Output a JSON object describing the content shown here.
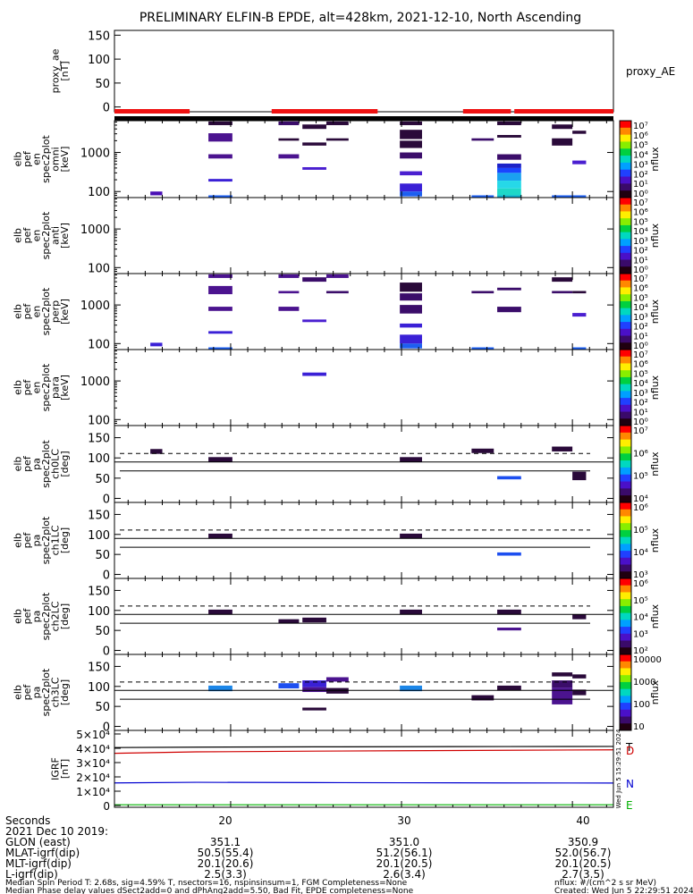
{
  "header": {
    "title": "PRELIMINARY ELFIN-B EPDE, alt=428km, 2021-12-10, North Ascending"
  },
  "chart_data": [
    {
      "id": "proxy_ae",
      "type": "line",
      "ylabel": "proxy_ae\n[nT]",
      "right_label": "proxy_AE",
      "ylim": [
        -10,
        160
      ],
      "yticks": [
        0,
        50,
        100,
        150
      ],
      "xlim": [
        13.2,
        42.4
      ],
      "series": []
    },
    {
      "id": "status_bar",
      "type": "bar",
      "red_segments": [
        [
          13.2,
          17.6
        ],
        [
          22.4,
          28.6
        ],
        [
          33.6,
          36.4
        ],
        [
          36.6,
          42.4
        ]
      ]
    },
    {
      "id": "en_omni",
      "type": "heatmap",
      "ylabel": "elb\npef\nen\nspec2plot\nomni\n[keV]",
      "yscale": "log",
      "ylim": [
        70,
        6500
      ],
      "yticks": [
        100,
        1000
      ],
      "xlim": [
        13.2,
        42.4
      ],
      "colorbar": {
        "label": "nflux",
        "ticks": [
          "10⁷",
          "10⁶",
          "10⁵",
          "10⁴",
          "10³",
          "10²",
          "10¹",
          "10⁰"
        ]
      },
      "cells": [
        [
          15.3,
          16.0,
          80,
          100,
          "#4a0fb5"
        ],
        [
          18.7,
          20.1,
          1900,
          3100,
          "#4b138f"
        ],
        [
          18.7,
          20.1,
          700,
          900,
          "#4b138f"
        ],
        [
          18.7,
          20.1,
          180,
          210,
          "#3a20d6"
        ],
        [
          18.7,
          20.1,
          65,
          80,
          "#1d5ff0"
        ],
        [
          18.7,
          20.1,
          5000,
          6200,
          "#2a0a3a"
        ],
        [
          22.8,
          24.0,
          2000,
          2300,
          "#2a0a3a"
        ],
        [
          22.8,
          24.0,
          700,
          900,
          "#4b138f"
        ],
        [
          22.8,
          24.0,
          5000,
          6200,
          "#3b0d6a"
        ],
        [
          24.2,
          25.6,
          1500,
          1800,
          "#2a0a3a"
        ],
        [
          24.2,
          25.6,
          360,
          420,
          "#4a1fd0"
        ],
        [
          24.2,
          25.6,
          4000,
          5200,
          "#2a0a3a"
        ],
        [
          25.6,
          26.9,
          5000,
          6200,
          "#2a0a3a"
        ],
        [
          25.6,
          26.9,
          2000,
          2300,
          "#2a0a3a"
        ],
        [
          29.9,
          31.2,
          1300,
          2000,
          "#2a0a3a"
        ],
        [
          29.9,
          31.2,
          2200,
          3800,
          "#2a0a3a"
        ],
        [
          29.9,
          31.2,
          700,
          1000,
          "#3b0d6a"
        ],
        [
          29.9,
          31.2,
          260,
          330,
          "#4a1fd0"
        ],
        [
          29.9,
          31.2,
          100,
          160,
          "#3a20d6"
        ],
        [
          29.9,
          31.2,
          75,
          100,
          "#1d5ff0"
        ],
        [
          29.9,
          31.2,
          5000,
          6200,
          "#2a0a3a"
        ],
        [
          34.1,
          35.4,
          2000,
          2300,
          "#3b0d6a"
        ],
        [
          34.1,
          35.4,
          65,
          80,
          "#1d5ff0"
        ],
        [
          35.6,
          37.0,
          2400,
          2800,
          "#2a0a3a"
        ],
        [
          35.6,
          37.0,
          650,
          900,
          "#3b0d6a"
        ],
        [
          35.6,
          37.0,
          400,
          520,
          "#1c22c8"
        ],
        [
          35.6,
          37.0,
          300,
          400,
          "#1a44ff"
        ],
        [
          35.6,
          37.0,
          190,
          300,
          "#1aa0f0"
        ],
        [
          35.6,
          37.0,
          120,
          190,
          "#26d8e8"
        ],
        [
          35.6,
          37.0,
          80,
          120,
          "#1fd8c8"
        ],
        [
          35.6,
          37.0,
          65,
          80,
          "#10b0d0"
        ],
        [
          35.6,
          37.0,
          5000,
          6200,
          "#2a0a3a"
        ],
        [
          38.8,
          40.0,
          1500,
          2300,
          "#2a0a3a"
        ],
        [
          38.8,
          40.0,
          4000,
          5200,
          "#2a0a3a"
        ],
        [
          38.8,
          40.0,
          65,
          80,
          "#1d5ff0"
        ],
        [
          40.0,
          40.8,
          3000,
          3600,
          "#2a0a3a"
        ],
        [
          40.0,
          40.8,
          500,
          620,
          "#4a1fd0"
        ],
        [
          40.0,
          40.8,
          65,
          80,
          "#1d5ff0"
        ]
      ]
    },
    {
      "id": "en_anti",
      "type": "heatmap",
      "ylabel": "elb\npef\nen\nspec2plot\nanti\n[keV]",
      "yscale": "log",
      "ylim": [
        70,
        6500
      ],
      "yticks": [
        100,
        1000
      ],
      "xlim": [
        13.2,
        42.4
      ],
      "colorbar": {
        "label": "nflux",
        "ticks": [
          "10⁷",
          "10⁶",
          "10⁵",
          "10⁴",
          "10³",
          "10²",
          "10¹",
          "10⁰"
        ]
      },
      "cells": []
    },
    {
      "id": "en_perp",
      "type": "heatmap",
      "ylabel": "elb\npef\nen\nspec2plot\nperp\n[keV]",
      "yscale": "log",
      "ylim": [
        70,
        6500
      ],
      "yticks": [
        100,
        1000
      ],
      "xlim": [
        13.2,
        42.4
      ],
      "colorbar": {
        "label": "nflux",
        "ticks": [
          "10⁷",
          "10⁶",
          "10⁵",
          "10⁴",
          "10³",
          "10²",
          "10¹",
          "10⁰"
        ]
      },
      "cells": [
        [
          15.3,
          16.0,
          85,
          105,
          "#3a20d6"
        ],
        [
          18.7,
          20.1,
          1900,
          3100,
          "#4b138f"
        ],
        [
          18.7,
          20.1,
          700,
          900,
          "#4b138f"
        ],
        [
          18.7,
          20.1,
          180,
          210,
          "#3a20d6"
        ],
        [
          18.7,
          20.1,
          65,
          80,
          "#1d5ff0"
        ],
        [
          18.7,
          20.1,
          5000,
          6200,
          "#4b138f"
        ],
        [
          22.8,
          24.0,
          2000,
          2300,
          "#4b138f"
        ],
        [
          22.8,
          24.0,
          700,
          900,
          "#4b138f"
        ],
        [
          22.8,
          24.0,
          5000,
          6200,
          "#4b138f"
        ],
        [
          24.2,
          25.6,
          4000,
          5200,
          "#3b0d6a"
        ],
        [
          24.2,
          25.6,
          360,
          420,
          "#4a1fd0"
        ],
        [
          25.6,
          26.9,
          2000,
          2300,
          "#3b0d6a"
        ],
        [
          25.6,
          26.9,
          5000,
          6200,
          "#4b138f"
        ],
        [
          29.9,
          31.2,
          2200,
          3800,
          "#2a0a3a"
        ],
        [
          29.9,
          31.2,
          1300,
          2000,
          "#3b0d6a"
        ],
        [
          29.9,
          31.2,
          600,
          1000,
          "#3b0d6a"
        ],
        [
          29.9,
          31.2,
          260,
          330,
          "#3a20d6"
        ],
        [
          29.9,
          31.2,
          100,
          170,
          "#3a20d6"
        ],
        [
          29.9,
          31.2,
          75,
          100,
          "#1d5ff0"
        ],
        [
          34.1,
          35.4,
          2000,
          2300,
          "#3b0d6a"
        ],
        [
          34.1,
          35.4,
          65,
          80,
          "#1d5ff0"
        ],
        [
          35.6,
          37.0,
          2400,
          2800,
          "#3b0d6a"
        ],
        [
          35.6,
          37.0,
          650,
          900,
          "#3b0d6a"
        ],
        [
          38.8,
          40.0,
          4000,
          5200,
          "#2a0a3a"
        ],
        [
          38.8,
          40.0,
          2000,
          2300,
          "#3b0d6a"
        ],
        [
          40.0,
          40.8,
          2000,
          2300,
          "#2a0a3a"
        ],
        [
          40.0,
          40.8,
          500,
          620,
          "#4a1fd0"
        ],
        [
          40.0,
          40.8,
          65,
          80,
          "#1d5ff0"
        ]
      ]
    },
    {
      "id": "en_para",
      "type": "heatmap",
      "ylabel": "elb\npef\nen\nspec2plot\npara\n[keV]",
      "yscale": "log",
      "ylim": [
        70,
        6500
      ],
      "yticks": [
        100,
        1000
      ],
      "xlim": [
        13.2,
        42.4
      ],
      "colorbar": {
        "label": "nflux",
        "ticks": [
          "10⁷",
          "10⁶",
          "10⁵",
          "10⁴",
          "10³",
          "10²",
          "10¹",
          "10⁰"
        ]
      },
      "cells": [
        [
          24.2,
          25.6,
          1350,
          1650,
          "#3a20d6"
        ]
      ]
    },
    {
      "id": "pa_ch0",
      "type": "heatmap",
      "ylabel": "elb\npef\npa\nspec2plot\nch0LC\n[deg]",
      "ylim": [
        -10,
        180
      ],
      "yticks": [
        0,
        50,
        100,
        150
      ],
      "xlim": [
        13.2,
        42.4
      ],
      "dashed_y": 111,
      "solid_y": [
        90,
        68
      ],
      "colorbar": {
        "label": "nflux",
        "ticks": [
          "10⁷",
          "10⁶",
          "10⁵",
          "10⁴"
        ]
      },
      "cells": [
        [
          15.3,
          16.0,
          110,
          122,
          "#2a0a3a"
        ],
        [
          18.7,
          20.1,
          90,
          102,
          "#2a0a3a"
        ],
        [
          29.9,
          31.2,
          90,
          102,
          "#2a0a3a"
        ],
        [
          34.1,
          35.4,
          112,
          123,
          "#2a0a3a"
        ],
        [
          35.6,
          37.0,
          47,
          55,
          "#1d4ff0"
        ],
        [
          38.8,
          40.0,
          116,
          128,
          "#2a0a3a"
        ],
        [
          40.0,
          40.8,
          45,
          66,
          "#2a0a3a"
        ]
      ]
    },
    {
      "id": "pa_ch1",
      "type": "heatmap",
      "ylabel": "elb\npef\npa\nspec2plot\nch1LC\n[deg]",
      "ylim": [
        -10,
        180
      ],
      "yticks": [
        0,
        50,
        100,
        150
      ],
      "xlim": [
        13.2,
        42.4
      ],
      "dashed_y": 111,
      "solid_y": [
        90,
        68
      ],
      "colorbar": {
        "label": "nflux",
        "ticks": [
          "10⁶",
          "10⁵",
          "10⁴",
          "10³"
        ]
      },
      "cells": [
        [
          18.7,
          20.1,
          90,
          102,
          "#2a0a3a"
        ],
        [
          29.9,
          31.2,
          90,
          102,
          "#2a0a3a"
        ],
        [
          35.6,
          37.0,
          47,
          55,
          "#1d4ff0"
        ]
      ]
    },
    {
      "id": "pa_ch2",
      "type": "heatmap",
      "ylabel": "elb\npef\npa\nspec2plot\nch2LC\n[deg]",
      "ylim": [
        -10,
        180
      ],
      "yticks": [
        0,
        50,
        100,
        150
      ],
      "xlim": [
        13.2,
        42.4
      ],
      "dashed_y": 111,
      "solid_y": [
        90,
        68
      ],
      "colorbar": {
        "label": "nflux",
        "ticks": [
          "10⁶",
          "10⁵",
          "10⁴",
          "10³",
          "10²"
        ]
      },
      "cells": [
        [
          18.7,
          20.1,
          90,
          102,
          "#2a0a3a"
        ],
        [
          22.8,
          24.0,
          68,
          78,
          "#2a0a3a"
        ],
        [
          24.2,
          25.6,
          70,
          82,
          "#2a0a3a"
        ],
        [
          29.9,
          31.2,
          90,
          102,
          "#2a0a3a"
        ],
        [
          35.6,
          37.0,
          90,
          102,
          "#2a0a3a"
        ],
        [
          35.6,
          37.0,
          50,
          57,
          "#4b138f"
        ],
        [
          40.0,
          40.8,
          78,
          90,
          "#2a0a3a"
        ]
      ]
    },
    {
      "id": "pa_ch3",
      "type": "heatmap",
      "ylabel": "elb\npef\npa\nspec2plot\nch3LC\n[deg]",
      "ylim": [
        -10,
        180
      ],
      "yticks": [
        0,
        50,
        100,
        150
      ],
      "xlim": [
        13.2,
        42.4
      ],
      "dashed_y": 111,
      "solid_y": [
        90,
        68
      ],
      "colorbar": {
        "label": "nflux",
        "ticks": [
          "10000",
          "1000",
          "100",
          "10"
        ]
      },
      "cells": [
        [
          18.7,
          20.1,
          88,
          102,
          "#1b86e8"
        ],
        [
          22.8,
          24.0,
          95,
          108,
          "#1d4ff0"
        ],
        [
          24.2,
          25.6,
          98,
          115,
          "#3a20d6"
        ],
        [
          24.2,
          25.6,
          86,
          98,
          "#4b138f"
        ],
        [
          24.2,
          25.6,
          40,
          47,
          "#2a0a3a"
        ],
        [
          25.6,
          26.9,
          112,
          123,
          "#4b138f"
        ],
        [
          25.6,
          26.9,
          82,
          96,
          "#2a0a3a"
        ],
        [
          29.9,
          31.2,
          88,
          102,
          "#1b86e8"
        ],
        [
          34.1,
          35.4,
          65,
          78,
          "#2a0a3a"
        ],
        [
          35.6,
          37.0,
          90,
          102,
          "#2a0a3a"
        ],
        [
          38.8,
          40.0,
          125,
          135,
          "#2a0a3a"
        ],
        [
          38.8,
          40.0,
          97,
          115,
          "#3b0d6a"
        ],
        [
          38.8,
          40.0,
          55,
          97,
          "#4b138f"
        ],
        [
          40.0,
          40.8,
          120,
          130,
          "#2a0a3a"
        ],
        [
          40.0,
          40.8,
          78,
          92,
          "#2a0a3a"
        ]
      ]
    },
    {
      "id": "igrf",
      "type": "line",
      "ylabel": "IGRF\n[nT]",
      "ylim": [
        0,
        50000
      ],
      "yticks_labels": [
        "5×10⁴",
        "4×10⁴",
        "3×10⁴",
        "2×10⁴",
        "1×10⁴",
        "0"
      ],
      "xlim": [
        13.2,
        42.4
      ],
      "x": [
        13.2,
        18,
        25,
        30,
        36,
        42.4
      ],
      "series": [
        {
          "name": "T",
          "color": "#000000",
          "values": [
            40500,
            40800,
            41000,
            41100,
            41200,
            41300
          ]
        },
        {
          "name": "D",
          "color": "#d00000",
          "values": [
            36500,
            37500,
            38000,
            38300,
            38600,
            38900
          ]
        },
        {
          "name": "N",
          "color": "#0000d0",
          "values": [
            15800,
            16200,
            16000,
            15900,
            15800,
            15700
          ]
        },
        {
          "name": "E",
          "color": "#00b000",
          "values": [
            500,
            500,
            500,
            500,
            500,
            500
          ]
        }
      ],
      "side_label": "Wed Jun  5 15:29:51 2024"
    }
  ],
  "x_axis": {
    "xlim": [
      13.2,
      42.4
    ],
    "major_ticks": [
      20,
      30,
      40
    ],
    "minor_ticks": [
      14,
      15,
      16,
      17,
      18,
      19,
      21,
      22,
      23,
      24,
      25,
      26,
      27,
      28,
      29,
      31,
      32,
      33,
      34,
      35,
      36,
      37,
      38,
      39,
      41,
      42
    ]
  },
  "footer": {
    "seconds_label": "Seconds",
    "date_label": "2021 Dec 10 2019:",
    "tick20": "20",
    "tick30": "30",
    "tick40": "40",
    "rows": [
      {
        "label": "GLON (east)",
        "v20": "351.1",
        "v30": "351.0",
        "v40": "350.9"
      },
      {
        "label": "MLAT-igrf(dip)",
        "v20": "50.5(55.4)",
        "v30": "51.2(56.1)",
        "v40": "52.0(56.7)"
      },
      {
        "label": "MLT-igrf(dip)",
        "v20": "20.1(20.6)",
        "v30": "20.1(20.5)",
        "v40": "20.1(20.5)"
      },
      {
        "label": "L-igrf(dip)",
        "v20": "2.5(3.3)",
        "v30": "2.6(3.4)",
        "v40": "2.7(3.5)"
      }
    ],
    "line1": "Median Spin Period T: 2.68s, sig=4.59% T, nsectors=16, nspinsinsum=1, FGM Completeness=None",
    "line2": "Median Phase delay values dSect2add=0 and dPhAng2add=5.50, Bad Fit, EPDE completeness=None",
    "nflux_note": "nflux: #/(cm^2 s sr MeV)",
    "created": "Created: Wed Jun  5 22:29:51 2024"
  }
}
